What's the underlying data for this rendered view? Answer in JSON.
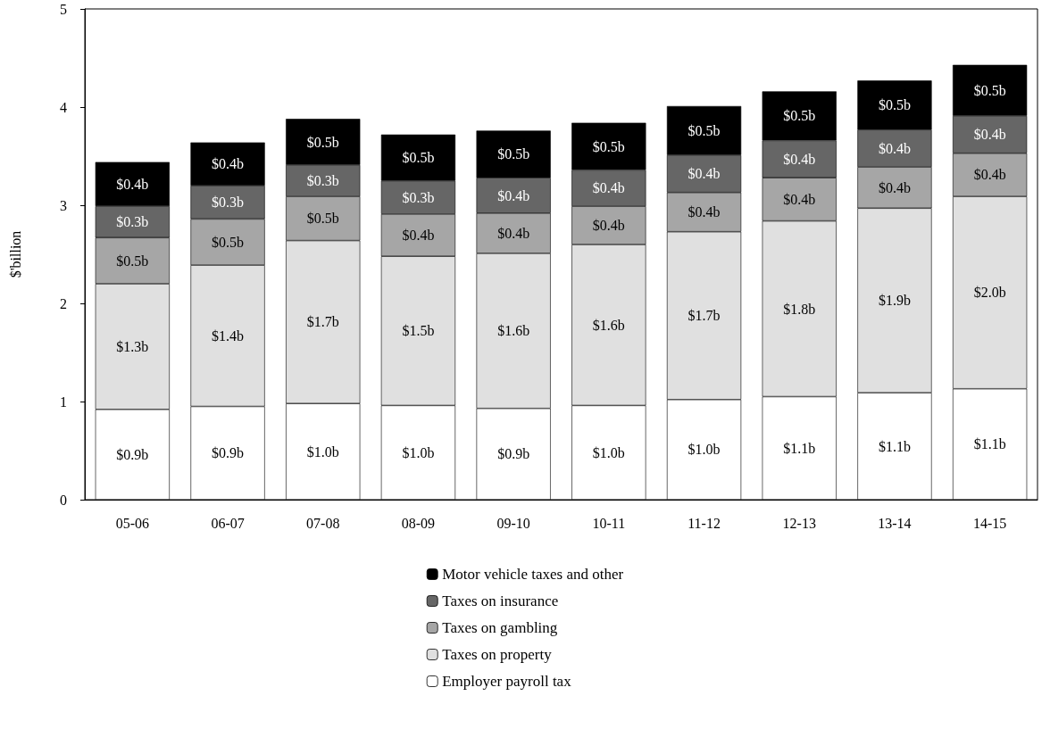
{
  "chart_data": {
    "type": "bar",
    "stacked": true,
    "ylabel": "$'billion",
    "categories": [
      "05-06",
      "06-07",
      "07-08",
      "08-09",
      "09-10",
      "10-11",
      "11-12",
      "12-13",
      "13-14",
      "14-15"
    ],
    "ylim": [
      0,
      5
    ],
    "yticks": [
      0,
      1,
      2,
      3,
      4,
      5
    ],
    "grid": false,
    "legend": "bottom",
    "series": [
      {
        "name": "Employer payroll tax",
        "color": "#ffffff",
        "values": [
          0.92,
          0.95,
          0.98,
          0.96,
          0.93,
          0.96,
          1.02,
          1.05,
          1.09,
          1.13
        ],
        "value_labels": [
          "$0.9b",
          "$0.9b",
          "$1.0b",
          "$1.0b",
          "$0.9b",
          "$1.0b",
          "$1.0b",
          "$1.1b",
          "$1.1b",
          "$1.1b"
        ]
      },
      {
        "name": "Taxes on property",
        "color": "#e0e0e0",
        "values": [
          1.28,
          1.44,
          1.66,
          1.52,
          1.58,
          1.64,
          1.71,
          1.79,
          1.88,
          1.96
        ],
        "value_labels": [
          "$1.3b",
          "$1.4b",
          "$1.7b",
          "$1.5b",
          "$1.6b",
          "$1.6b",
          "$1.7b",
          "$1.8b",
          "$1.9b",
          "$2.0b"
        ]
      },
      {
        "name": "Taxes on gambling",
        "color": "#a6a6a6",
        "values": [
          0.47,
          0.47,
          0.45,
          0.43,
          0.41,
          0.39,
          0.4,
          0.44,
          0.42,
          0.44
        ],
        "value_labels": [
          "$0.5b",
          "$0.5b",
          "$0.5b",
          "$0.4b",
          "$0.4b",
          "$0.4b",
          "$0.4b",
          "$0.4b",
          "$0.4b",
          "$0.4b"
        ]
      },
      {
        "name": "Taxes on insurance",
        "color": "#666666",
        "values": [
          0.32,
          0.34,
          0.32,
          0.34,
          0.36,
          0.37,
          0.38,
          0.38,
          0.38,
          0.38
        ],
        "value_labels": [
          "$0.3b",
          "$0.3b",
          "$0.3b",
          "$0.3b",
          "$0.4b",
          "$0.4b",
          "$0.4b",
          "$0.4b",
          "$0.4b",
          "$0.4b"
        ]
      },
      {
        "name": "Motor vehicle taxes and other",
        "color": "#000000",
        "values": [
          0.45,
          0.44,
          0.47,
          0.47,
          0.48,
          0.48,
          0.5,
          0.5,
          0.5,
          0.52
        ],
        "value_labels": [
          "$0.4b",
          "$0.4b",
          "$0.5b",
          "$0.5b",
          "$0.5b",
          "$0.5b",
          "$0.5b",
          "$0.5b",
          "$0.5b",
          "$0.5b"
        ]
      }
    ]
  }
}
